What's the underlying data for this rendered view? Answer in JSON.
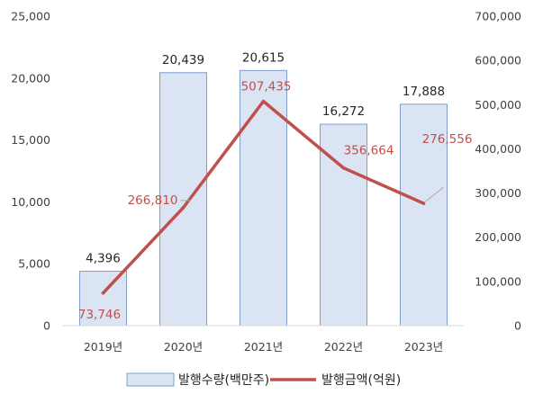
{
  "chart_data": {
    "type": "bar",
    "categories": [
      "2019년",
      "2020년",
      "2021년",
      "2022년",
      "2023년"
    ],
    "series": [
      {
        "name": "발행수량(백만주)",
        "type": "bar",
        "axis": "left",
        "values": [
          4396,
          20439,
          20615,
          16272,
          17888
        ],
        "labels": [
          "4,396",
          "20,439",
          "20,615",
          "16,272",
          "17,888"
        ],
        "color": "#dbe4f3",
        "border": "#7f9fcb"
      },
      {
        "name": "발행금액(억원)",
        "type": "line",
        "axis": "right",
        "values": [
          73746,
          266810,
          507435,
          356664,
          276556
        ],
        "labels": [
          "73,746",
          "266,810",
          "507,435",
          "356,664",
          "276,556"
        ],
        "color": "#c0504d"
      }
    ],
    "y_left": {
      "range": [
        0,
        25000
      ],
      "ticks": [
        0,
        5000,
        10000,
        15000,
        20000,
        25000
      ],
      "tick_labels": [
        "0",
        "5,000",
        "10,000",
        "15,000",
        "20,000",
        "25,000"
      ]
    },
    "y_right": {
      "range": [
        0,
        700000
      ],
      "ticks": [
        0,
        100000,
        200000,
        300000,
        400000,
        500000,
        600000,
        700000
      ],
      "tick_labels": [
        "0",
        "100,000",
        "200,000",
        "300,000",
        "400,000",
        "500,000",
        "600,000",
        "700,000"
      ]
    },
    "grid": false,
    "legend_position": "bottom"
  }
}
